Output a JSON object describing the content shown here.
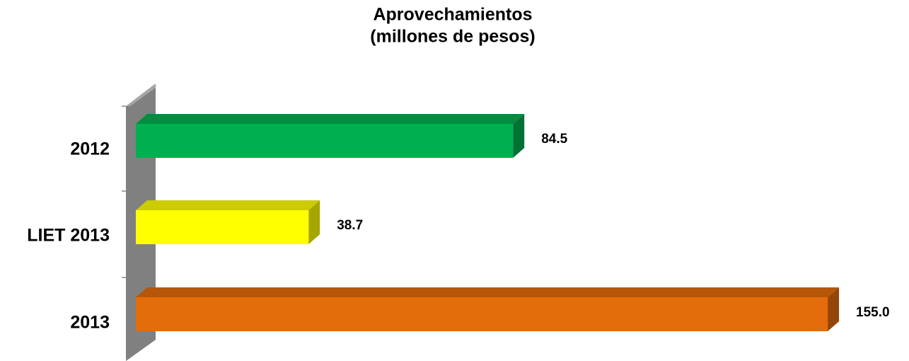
{
  "chart_data": {
    "type": "bar",
    "orientation": "horizontal",
    "title": "Aprovechamientos",
    "subtitle": "(millones de pesos)",
    "categories": [
      "2012",
      "LIET 2013",
      "2013"
    ],
    "values": [
      84.5,
      38.7,
      155.0
    ],
    "value_labels": [
      "84.5",
      "38.7",
      "155.0"
    ],
    "colors": [
      "#00b050",
      "#ffff00",
      "#e46c0a"
    ]
  }
}
